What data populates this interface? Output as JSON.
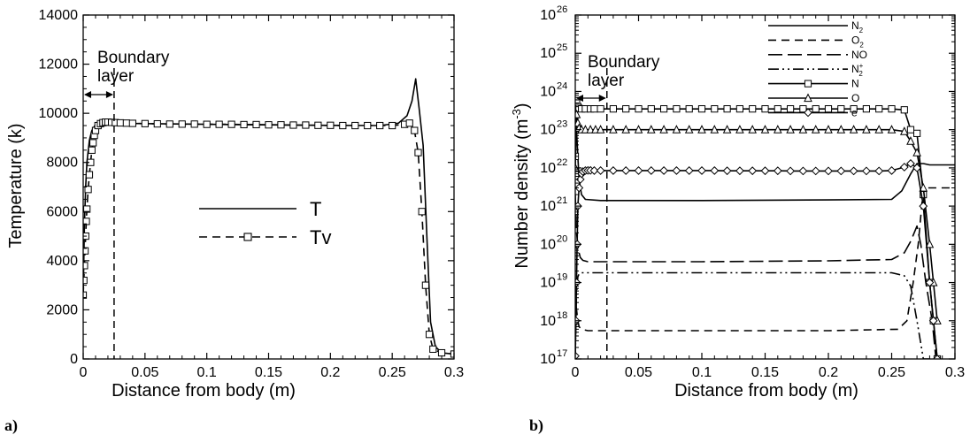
{
  "colors": {
    "ink": "#000000",
    "background": "#ffffff"
  },
  "chart_data": [
    {
      "panel_label": "a)",
      "type": "line",
      "title": "",
      "xlabel": "Distance from body (m)",
      "ylabel": "Temperature (k)",
      "xlim": [
        0,
        0.3
      ],
      "ylim": [
        0,
        14000
      ],
      "x_ticks": [
        "0",
        "0.05",
        "0.1",
        "0.15",
        "0.2",
        "0.25",
        "0.3"
      ],
      "y_ticks": [
        "0",
        "2000",
        "4000",
        "6000",
        "8000",
        "10000",
        "12000",
        "14000"
      ],
      "grid": false,
      "legend_position": "center-right",
      "annotation": {
        "text_lines": [
          "Boundary",
          "layer"
        ],
        "boundary_x": 0.025
      },
      "series": [
        {
          "name": "T",
          "style": "solid",
          "marker": "none",
          "x": [
            0,
            0.001,
            0.002,
            0.003,
            0.005,
            0.007,
            0.01,
            0.013,
            0.016,
            0.02,
            0.025,
            0.05,
            0.1,
            0.15,
            0.2,
            0.24,
            0.255,
            0.262,
            0.266,
            0.269,
            0.272,
            0.275,
            0.278,
            0.281,
            0.285,
            0.29,
            0.3
          ],
          "y": [
            2500,
            5500,
            7000,
            8000,
            8900,
            9300,
            9550,
            9620,
            9630,
            9620,
            9600,
            9580,
            9550,
            9530,
            9510,
            9500,
            9600,
            9900,
            10500,
            11400,
            10100,
            8700,
            5000,
            1500,
            500,
            250,
            200
          ]
        },
        {
          "name": "Tv",
          "style": "dashed",
          "marker": "square",
          "x": [
            0,
            0.0005,
            0.001,
            0.0015,
            0.002,
            0.0025,
            0.003,
            0.004,
            0.005,
            0.006,
            0.007,
            0.008,
            0.009,
            0.01,
            0.012,
            0.014,
            0.016,
            0.018,
            0.02,
            0.023,
            0.026,
            0.03,
            0.035,
            0.04,
            0.05,
            0.06,
            0.07,
            0.08,
            0.09,
            0.1,
            0.11,
            0.12,
            0.13,
            0.14,
            0.15,
            0.16,
            0.17,
            0.18,
            0.19,
            0.2,
            0.21,
            0.22,
            0.23,
            0.24,
            0.25,
            0.26,
            0.264,
            0.268,
            0.271,
            0.274,
            0.277,
            0.28,
            0.283,
            0.29,
            0.3
          ],
          "y": [
            2600,
            3200,
            3800,
            4400,
            5000,
            5600,
            6100,
            6900,
            7500,
            8000,
            8500,
            8800,
            9100,
            9300,
            9500,
            9580,
            9620,
            9640,
            9640,
            9630,
            9620,
            9610,
            9600,
            9590,
            9580,
            9570,
            9560,
            9560,
            9560,
            9550,
            9550,
            9550,
            9540,
            9540,
            9530,
            9530,
            9520,
            9520,
            9510,
            9510,
            9500,
            9500,
            9500,
            9500,
            9500,
            9550,
            9600,
            9300,
            8400,
            6000,
            3000,
            1000,
            400,
            250,
            200
          ]
        }
      ]
    },
    {
      "panel_label": "b)",
      "type": "line",
      "title": "",
      "xlabel": "Distance from body (m)",
      "ylabel": "Number density (m",
      "ylabel_exponent": "-3",
      "ylabel_close": ")",
      "xlim": [
        0,
        0.3
      ],
      "ylim": [
        1e+17,
        1e+26
      ],
      "y_scale": "log",
      "x_ticks": [
        "0",
        "0.05",
        "0.1",
        "0.15",
        "0.2",
        "0.25",
        "0.3"
      ],
      "y_ticks": [
        {
          "base": "10",
          "exp": "17"
        },
        {
          "base": "10",
          "exp": "18"
        },
        {
          "base": "10",
          "exp": "19"
        },
        {
          "base": "10",
          "exp": "20"
        },
        {
          "base": "10",
          "exp": "21"
        },
        {
          "base": "10",
          "exp": "22"
        },
        {
          "base": "10",
          "exp": "23"
        },
        {
          "base": "10",
          "exp": "24"
        },
        {
          "base": "10",
          "exp": "25"
        },
        {
          "base": "10",
          "exp": "26"
        }
      ],
      "grid": false,
      "legend_position": "top-right",
      "annotation": {
        "text_lines": [
          "Boundary",
          "layer"
        ],
        "boundary_x": 0.025
      },
      "series": [
        {
          "name": "N",
          "sub": "2",
          "sup": "",
          "style": "solid",
          "marker": "none",
          "x": [
            0,
            0.001,
            0.002,
            0.003,
            0.005,
            0.008,
            0.02,
            0.1,
            0.2,
            0.25,
            0.258,
            0.265,
            0.27,
            0.275,
            0.28,
            0.285,
            0.3
          ],
          "y": [
            2e+23,
            1e+23,
            2e+22,
            5e+21,
            2e+21,
            1.5e+21,
            1.4e+21,
            1.4e+21,
            1.45e+21,
            1.5e+21,
            2.5e+21,
            7e+21,
            1.3e+22,
            1.3e+22,
            1.2e+22,
            1.2e+22,
            1.2e+22
          ]
        },
        {
          "name": "O",
          "sub": "2",
          "sup": "",
          "style": "dashed",
          "marker": "none",
          "x": [
            0,
            0.001,
            0.002,
            0.003,
            0.005,
            0.01,
            0.02,
            0.1,
            0.2,
            0.255,
            0.262,
            0.267,
            0.271,
            0.275,
            0.278,
            0.282,
            0.286,
            0.3
          ],
          "y": [
            5e+18,
            2e+18,
            1e+18,
            7e+17,
            6e+17,
            5.5e+17,
            5.5e+17,
            5.5e+17,
            5.5e+17,
            6e+17,
            1e+18,
            1e+19,
            1e+20,
            3e+21,
            3e+21,
            3e+21,
            3e+21,
            3e+21
          ]
        },
        {
          "name": "NO",
          "sub": "",
          "sup": "",
          "style": "longdash",
          "marker": "none",
          "x": [
            0,
            0.001,
            0.002,
            0.003,
            0.004,
            0.006,
            0.01,
            0.02,
            0.1,
            0.2,
            0.25,
            0.26,
            0.265,
            0.27,
            0.273,
            0.277,
            0.282,
            0.285
          ],
          "y": [
            2e+21,
            2e+20,
            1e+20,
            6e+19,
            4.5e+19,
            3.8e+19,
            3.5e+19,
            3.5e+19,
            3.5e+19,
            3.7e+19,
            4e+19,
            6e+19,
            1.2e+20,
            3e+20,
            1e+20,
            1e+19,
            1e+18,
            1e+17
          ]
        },
        {
          "name": "N",
          "sub": "2",
          "sup": "+",
          "style": "dashdotdot",
          "marker": "none",
          "x": [
            0,
            0.0005,
            0.001,
            0.002,
            0.003,
            0.005,
            0.01,
            0.02,
            0.1,
            0.2,
            0.25,
            0.26,
            0.265,
            0.27,
            0.275,
            0.28
          ],
          "y": [
            1e+17,
            1e+18,
            5e+18,
            1.4e+19,
            1.7e+19,
            1.8e+19,
            1.8e+19,
            1.8e+19,
            1.8e+19,
            1.8e+19,
            1.8e+19,
            1.5e+19,
            8e+18,
            1e+18,
            1e+17,
            1e+17
          ]
        },
        {
          "name": "N",
          "sub": "",
          "sup": "",
          "style": "solid",
          "marker": "square",
          "x": [
            0,
            0.001,
            0.002,
            0.003,
            0.005,
            0.008,
            0.012,
            0.015,
            0.02,
            0.03,
            0.04,
            0.05,
            0.06,
            0.07,
            0.08,
            0.09,
            0.1,
            0.11,
            0.12,
            0.13,
            0.14,
            0.15,
            0.16,
            0.17,
            0.18,
            0.19,
            0.2,
            0.21,
            0.22,
            0.23,
            0.24,
            0.25,
            0.26,
            0.265,
            0.27,
            0.275,
            0.28,
            0.283,
            0.286
          ],
          "y": [
            2e+22,
            5e+23,
            4e+23,
            3.6e+23,
            3.5e+23,
            3.5e+23,
            3.5e+23,
            3.5e+23,
            3.5e+23,
            3.5e+23,
            3.5e+23,
            3.5e+23,
            3.5e+23,
            3.5e+23,
            3.5e+23,
            3.5e+23,
            3.5e+23,
            3.5e+23,
            3.5e+23,
            3.5e+23,
            3.5e+23,
            3.5e+23,
            3.5e+23,
            3.5e+23,
            3.5e+23,
            3.5e+23,
            3.5e+23,
            3.5e+23,
            3.5e+23,
            3.5e+23,
            3.5e+23,
            3.5e+23,
            3.3e+23,
            1e+23,
            8e+22,
            2e+21,
            1e+19,
            1e+18,
            1e+17
          ]
        },
        {
          "name": "O",
          "sub": "",
          "sup": "",
          "style": "solid",
          "marker": "triangle",
          "x": [
            0,
            0.001,
            0.002,
            0.003,
            0.005,
            0.008,
            0.012,
            0.016,
            0.02,
            0.03,
            0.04,
            0.05,
            0.06,
            0.07,
            0.08,
            0.09,
            0.1,
            0.11,
            0.12,
            0.13,
            0.14,
            0.15,
            0.16,
            0.17,
            0.18,
            0.19,
            0.2,
            0.21,
            0.22,
            0.23,
            0.24,
            0.25,
            0.26,
            0.265,
            0.27,
            0.275,
            0.28,
            0.283,
            0.286
          ],
          "y": [
            1e+22,
            2.5e+23,
            1.5e+23,
            1.1e+23,
            1e+23,
            1e+23,
            1e+23,
            1e+23,
            1e+23,
            1e+23,
            1e+23,
            1e+23,
            1e+23,
            1e+23,
            1e+23,
            1e+23,
            1e+23,
            1e+23,
            1e+23,
            1e+23,
            1e+23,
            1e+23,
            1e+23,
            1e+23,
            1e+23,
            1e+23,
            1e+23,
            1e+23,
            1e+23,
            1e+23,
            1e+23,
            1e+23,
            9e+22,
            5e+22,
            2.5e+22,
            3e+21,
            1e+20,
            1e+19,
            1e+18
          ]
        },
        {
          "name": "e",
          "sub": "",
          "sup": "",
          "style": "solid",
          "marker": "diamond",
          "x": [
            0,
            0.0005,
            0.001,
            0.0015,
            0.002,
            0.003,
            0.004,
            0.005,
            0.006,
            0.008,
            0.01,
            0.012,
            0.015,
            0.02,
            0.03,
            0.04,
            0.05,
            0.06,
            0.07,
            0.08,
            0.09,
            0.1,
            0.11,
            0.12,
            0.13,
            0.14,
            0.15,
            0.16,
            0.17,
            0.18,
            0.19,
            0.2,
            0.21,
            0.22,
            0.23,
            0.24,
            0.25,
            0.26,
            0.265,
            0.27,
            0.275,
            0.28,
            0.283,
            0.286
          ],
          "y": [
            1.2e+17,
            1e+18,
            1e+19,
            1e+20,
            1e+21,
            3e+21,
            5e+21,
            7e+21,
            8e+21,
            8.5e+21,
            8.6e+21,
            8.6e+21,
            8.5e+21,
            8.5e+21,
            8.5e+21,
            8.5e+21,
            8.5e+21,
            8.5e+21,
            8.5e+21,
            8.5e+21,
            8.5e+21,
            8.5e+21,
            8.5e+21,
            8.4e+21,
            8.4e+21,
            8.4e+21,
            8.4e+21,
            8.4e+21,
            8.3e+21,
            8.3e+21,
            8.3e+21,
            8.3e+21,
            8.3e+21,
            8.3e+21,
            8.3e+21,
            8.3e+21,
            8.5e+21,
            1.05e+22,
            1.3e+22,
            1e+22,
            1e+21,
            1e+19,
            1e+18,
            1e+17
          ]
        }
      ]
    }
  ]
}
